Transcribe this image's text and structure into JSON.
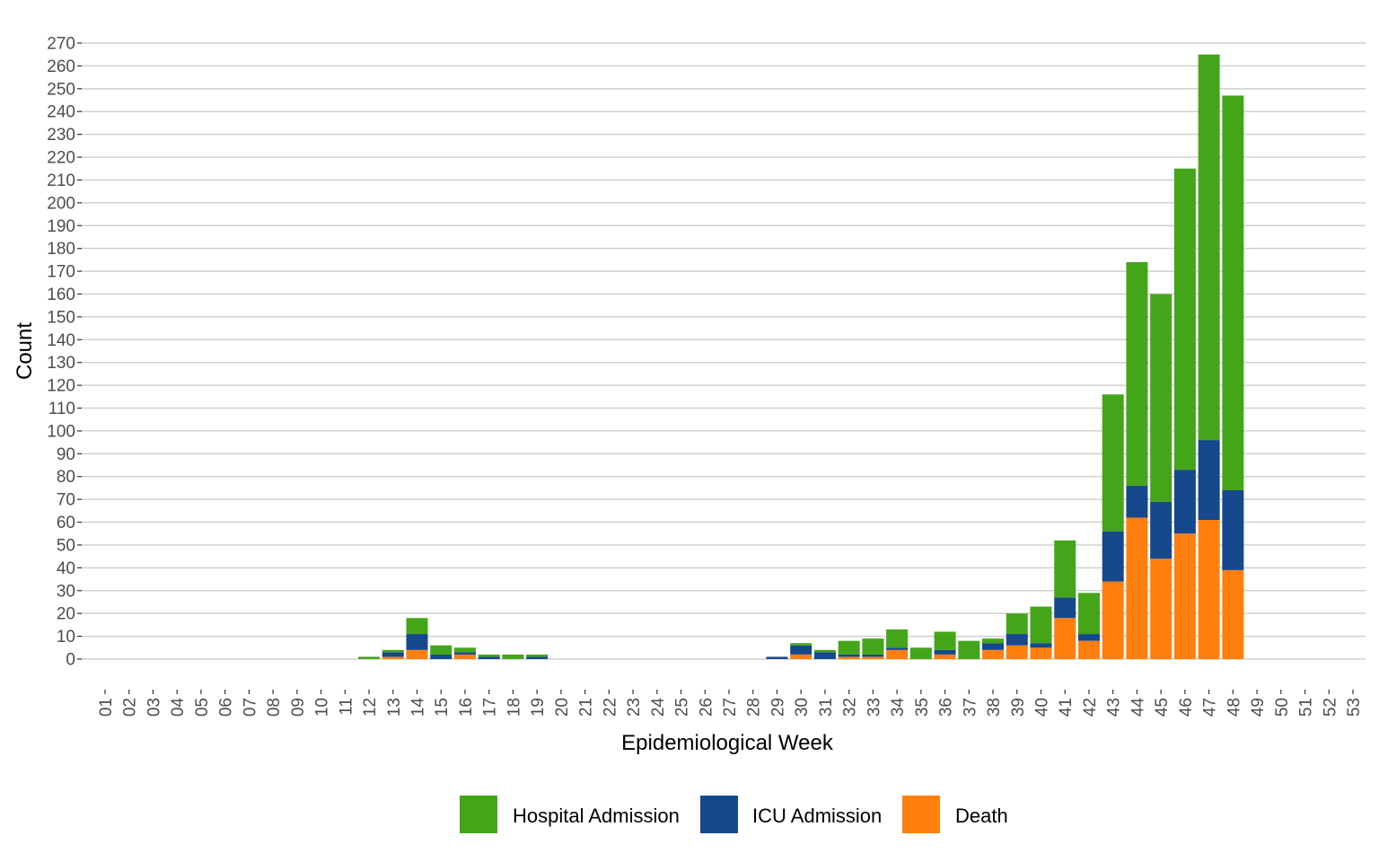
{
  "chart_data": {
    "type": "bar",
    "stacked": true,
    "title": "",
    "xlabel": "Epidemiological Week",
    "ylabel": "Count",
    "ylim": [
      0,
      270
    ],
    "ytick_step": 10,
    "grid": true,
    "legend_position": "bottom",
    "categories": [
      "01",
      "02",
      "03",
      "04",
      "05",
      "06",
      "07",
      "08",
      "09",
      "10",
      "11",
      "12",
      "13",
      "14",
      "15",
      "16",
      "17",
      "18",
      "19",
      "20",
      "21",
      "22",
      "23",
      "24",
      "25",
      "26",
      "27",
      "28",
      "29",
      "30",
      "31",
      "32",
      "33",
      "34",
      "35",
      "36",
      "37",
      "38",
      "39",
      "40",
      "41",
      "42",
      "43",
      "44",
      "45",
      "46",
      "47",
      "48",
      "49",
      "50",
      "51",
      "52",
      "53"
    ],
    "series": [
      {
        "name": "Death",
        "color": "#ff7f0e",
        "values": [
          0,
          0,
          0,
          0,
          0,
          0,
          0,
          0,
          0,
          0,
          0,
          0,
          1,
          4,
          0,
          2,
          0,
          0,
          0,
          0,
          0,
          0,
          0,
          0,
          0,
          0,
          0,
          0,
          0,
          2,
          0,
          1,
          1,
          4,
          0,
          2,
          0,
          4,
          6,
          5,
          18,
          8,
          34,
          62,
          44,
          55,
          61,
          39,
          0,
          0,
          0,
          0,
          0
        ]
      },
      {
        "name": "ICU Admission",
        "color": "#15488c",
        "values": [
          0,
          0,
          0,
          0,
          0,
          0,
          0,
          0,
          0,
          0,
          0,
          0,
          2,
          7,
          2,
          1,
          1,
          0,
          1,
          0,
          0,
          0,
          0,
          0,
          0,
          0,
          0,
          0,
          1,
          4,
          3,
          1,
          1,
          1,
          0,
          2,
          0,
          3,
          5,
          2,
          9,
          3,
          22,
          14,
          25,
          28,
          35,
          35,
          0,
          0,
          0,
          0,
          0
        ]
      },
      {
        "name": "Hospital Admission",
        "color": "#45a519",
        "values": [
          0,
          0,
          0,
          0,
          0,
          0,
          0,
          0,
          0,
          0,
          0,
          1,
          1,
          7,
          4,
          2,
          1,
          2,
          1,
          0,
          0,
          0,
          0,
          0,
          0,
          0,
          0,
          0,
          0,
          1,
          1,
          6,
          7,
          8,
          5,
          8,
          8,
          2,
          9,
          16,
          25,
          18,
          60,
          98,
          91,
          132,
          169,
          173,
          0,
          0,
          0,
          0,
          0
        ]
      }
    ],
    "legend": [
      "Hospital Admission",
      "ICU Admission",
      "Death"
    ]
  }
}
